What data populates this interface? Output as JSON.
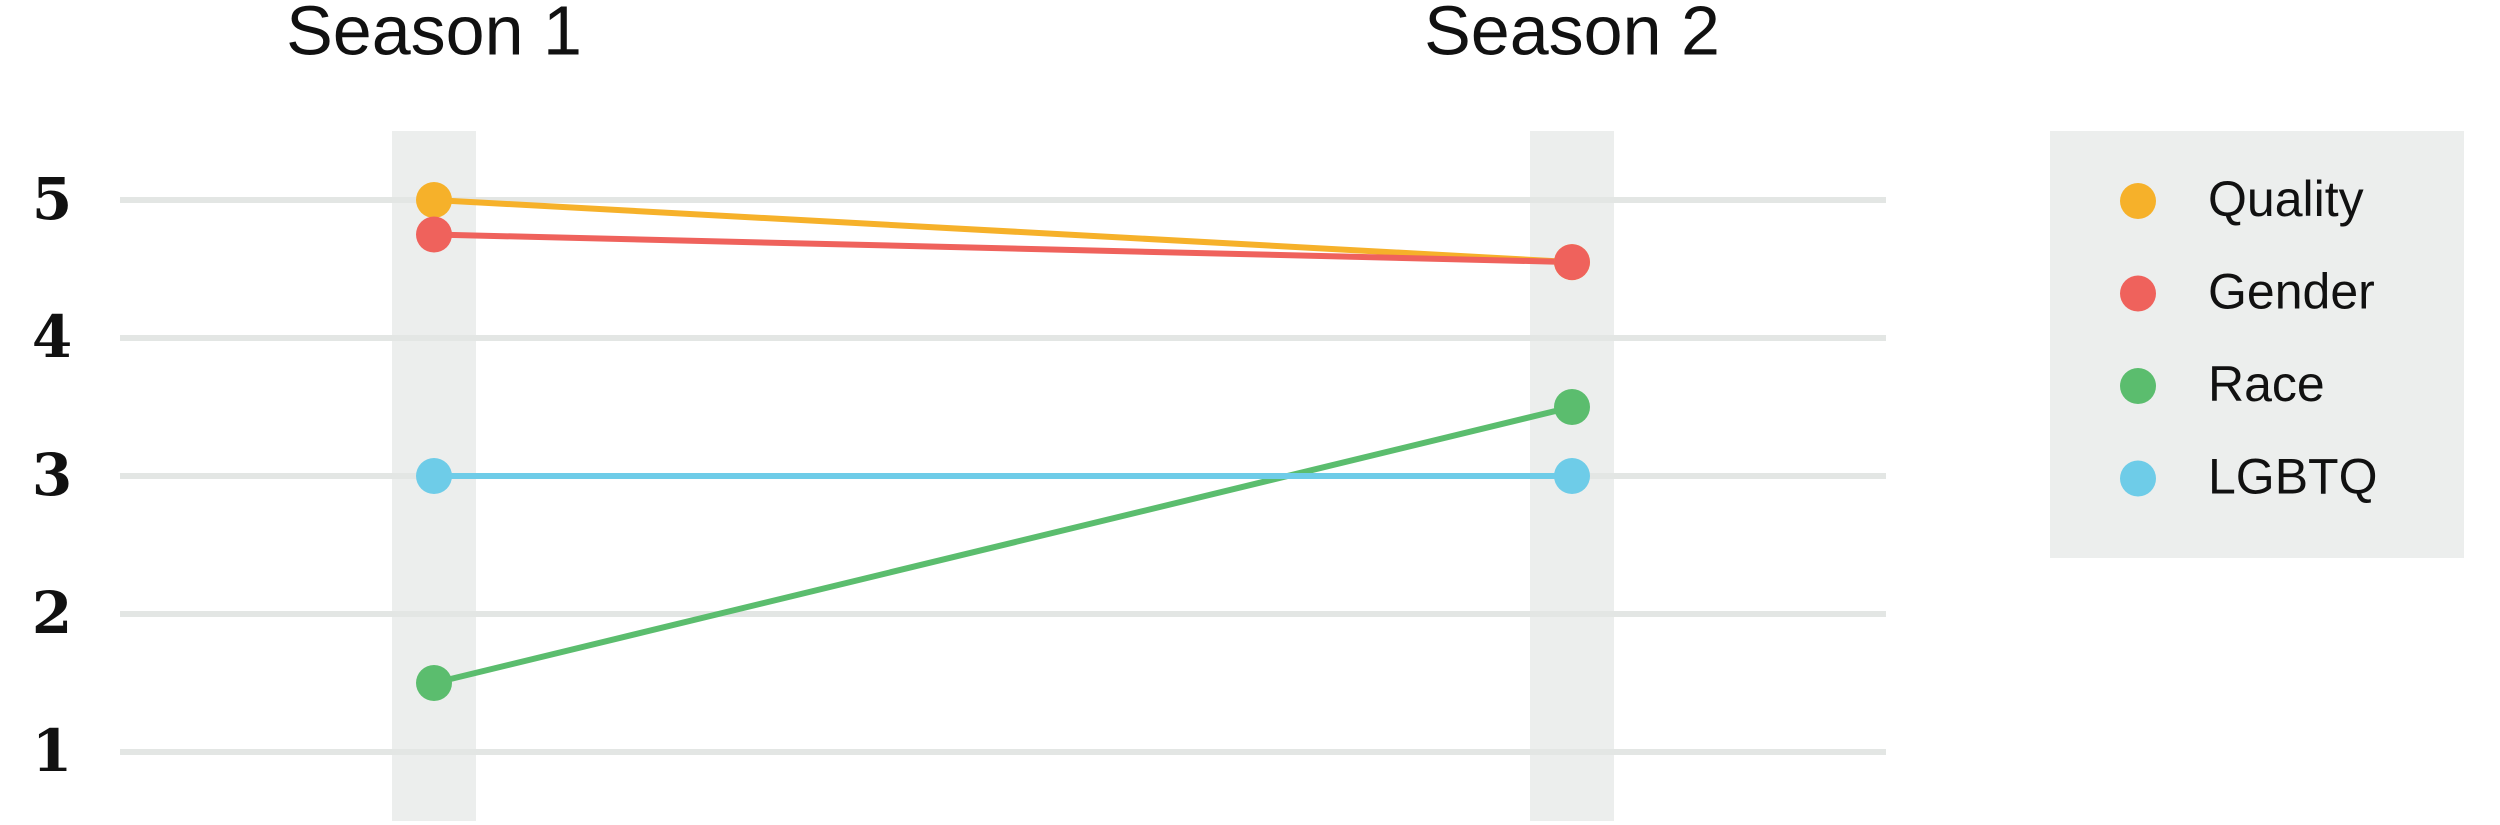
{
  "chart_data": {
    "type": "line",
    "categories": [
      "Season 1",
      "Season 2"
    ],
    "series": [
      {
        "name": "Quality",
        "color": "#f6b12a",
        "values": [
          5.0,
          4.55
        ]
      },
      {
        "name": "Gender",
        "color": "#ef625c",
        "values": [
          4.75,
          4.55
        ]
      },
      {
        "name": "Race",
        "color": "#5bbd6e",
        "values": [
          1.5,
          3.5
        ]
      },
      {
        "name": "LGBTQ",
        "color": "#6ecce8",
        "values": [
          3.0,
          3.0
        ]
      }
    ],
    "ylim": [
      0.5,
      5.5
    ],
    "yticks": [
      1,
      2,
      3,
      4,
      5
    ],
    "grid": true,
    "legend": "right"
  }
}
